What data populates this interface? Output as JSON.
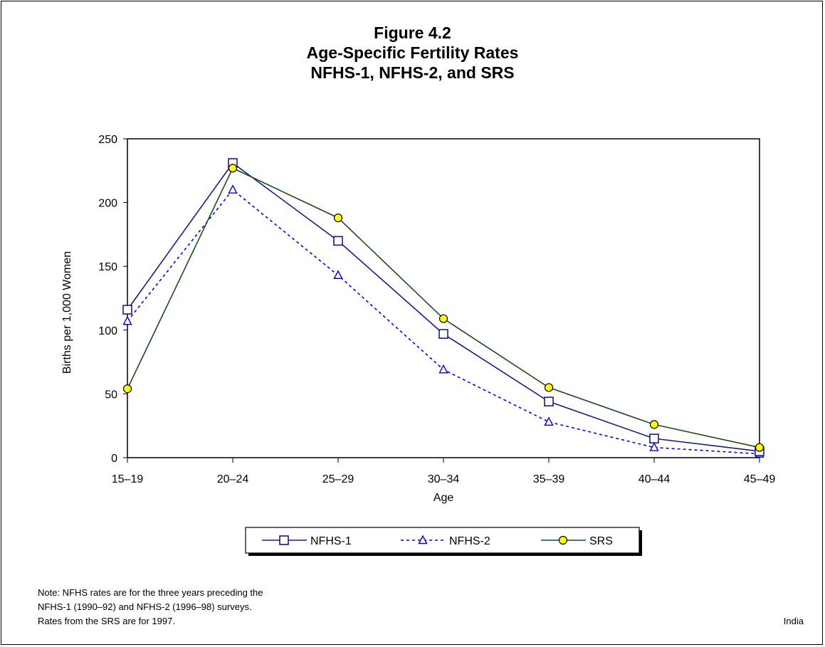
{
  "chart_data": {
    "type": "line",
    "title": [
      "Figure 4.2",
      "Age-Specific Fertility Rates",
      "NFHS-1, NFHS-2, and SRS"
    ],
    "xlabel": "Age",
    "ylabel": "Births per 1,000 Women",
    "categories": [
      "15–19",
      "20–24",
      "25–29",
      "30–34",
      "35–39",
      "40–44",
      "45–49"
    ],
    "ylim": [
      0,
      250
    ],
    "yticks": [
      0,
      50,
      100,
      150,
      200,
      250
    ],
    "grid": false,
    "legend": "bottom",
    "series": [
      {
        "name": "NFHS-1",
        "values": [
          116,
          231,
          170,
          97,
          44,
          15,
          5
        ],
        "color": "#1a1a8c",
        "dash": "solid",
        "marker": "square"
      },
      {
        "name": "NFHS-2",
        "values": [
          107,
          210,
          143,
          69,
          28,
          8,
          3
        ],
        "color": "#0000ff",
        "dash": "dotted",
        "marker": "triangle"
      },
      {
        "name": "SRS",
        "values": [
          54,
          227,
          188,
          109,
          55,
          26,
          8
        ],
        "color": "#1a4d1a",
        "dash": "solid",
        "marker": "circle"
      }
    ]
  },
  "note": [
    "Note: NFHS rates are for the three years preceding the",
    "NFHS-1 (1990–92) and NFHS-2 (1996–98) surveys.",
    "Rates from the SRS are for 1997."
  ],
  "country": "India",
  "colors": {
    "srs_marker_fill": "#ffff00"
  }
}
